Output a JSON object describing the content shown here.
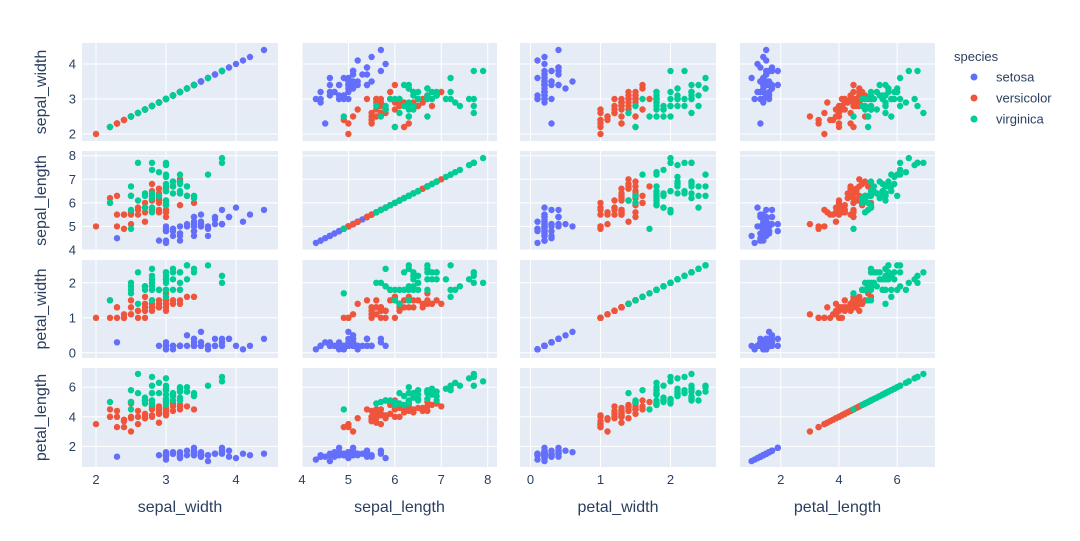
{
  "chart_data": {
    "type": "scatter",
    "subtype": "scatter-matrix",
    "dimensions": [
      "sepal_width",
      "sepal_length",
      "petal_width",
      "petal_length"
    ],
    "axis_labels": [
      "sepal_width",
      "sepal_length",
      "petal_width",
      "petal_length"
    ],
    "axes": {
      "sepal_width": {
        "range": [
          1.8,
          4.6
        ],
        "ticks": [
          2,
          3,
          4
        ]
      },
      "sepal_length": {
        "range": [
          4.0,
          8.2
        ],
        "ticks": [
          4,
          5,
          6,
          7,
          8
        ]
      },
      "petal_width": {
        "range": [
          -0.15,
          2.65
        ],
        "ticks": [
          0,
          1,
          2
        ]
      },
      "petal_length": {
        "range": [
          0.6,
          7.3
        ],
        "ticks": [
          2,
          4,
          6
        ]
      }
    },
    "legend": {
      "title": "species",
      "position": "right"
    },
    "series": [
      {
        "name": "setosa",
        "color": "#636efa",
        "points": [
          [
            3.5,
            5.1,
            0.2,
            1.4
          ],
          [
            3.0,
            4.9,
            0.2,
            1.4
          ],
          [
            3.2,
            4.7,
            0.2,
            1.3
          ],
          [
            3.1,
            4.6,
            0.2,
            1.5
          ],
          [
            3.6,
            5.0,
            0.2,
            1.4
          ],
          [
            3.9,
            5.4,
            0.4,
            1.7
          ],
          [
            3.4,
            4.6,
            0.3,
            1.4
          ],
          [
            3.4,
            5.0,
            0.2,
            1.5
          ],
          [
            2.9,
            4.4,
            0.2,
            1.4
          ],
          [
            3.1,
            4.9,
            0.1,
            1.5
          ],
          [
            3.7,
            5.4,
            0.2,
            1.5
          ],
          [
            3.4,
            4.8,
            0.2,
            1.6
          ],
          [
            3.0,
            4.8,
            0.1,
            1.4
          ],
          [
            3.0,
            4.3,
            0.1,
            1.1
          ],
          [
            4.0,
            5.8,
            0.2,
            1.2
          ],
          [
            4.4,
            5.7,
            0.4,
            1.5
          ],
          [
            3.9,
            5.4,
            0.4,
            1.3
          ],
          [
            3.5,
            5.1,
            0.3,
            1.4
          ],
          [
            3.8,
            5.7,
            0.3,
            1.7
          ],
          [
            3.8,
            5.1,
            0.3,
            1.5
          ],
          [
            3.4,
            5.4,
            0.2,
            1.7
          ],
          [
            3.7,
            5.1,
            0.4,
            1.5
          ],
          [
            3.6,
            4.6,
            0.2,
            1.0
          ],
          [
            3.3,
            5.1,
            0.5,
            1.7
          ],
          [
            3.4,
            4.8,
            0.2,
            1.9
          ],
          [
            3.0,
            5.0,
            0.2,
            1.6
          ],
          [
            3.4,
            5.0,
            0.4,
            1.6
          ],
          [
            3.5,
            5.2,
            0.2,
            1.5
          ],
          [
            3.4,
            5.2,
            0.2,
            1.4
          ],
          [
            3.2,
            4.7,
            0.2,
            1.6
          ],
          [
            3.1,
            4.8,
            0.2,
            1.6
          ],
          [
            3.4,
            5.4,
            0.4,
            1.5
          ],
          [
            4.1,
            5.2,
            0.1,
            1.5
          ],
          [
            4.2,
            5.5,
            0.2,
            1.4
          ],
          [
            3.1,
            4.9,
            0.2,
            1.5
          ],
          [
            3.2,
            5.0,
            0.2,
            1.2
          ],
          [
            3.5,
            5.5,
            0.2,
            1.3
          ],
          [
            3.6,
            4.9,
            0.1,
            1.4
          ],
          [
            3.0,
            4.4,
            0.2,
            1.3
          ],
          [
            3.4,
            5.1,
            0.2,
            1.5
          ],
          [
            3.5,
            5.0,
            0.3,
            1.3
          ],
          [
            2.3,
            4.5,
            0.3,
            1.3
          ],
          [
            3.2,
            4.4,
            0.2,
            1.3
          ],
          [
            3.5,
            5.0,
            0.6,
            1.6
          ],
          [
            3.8,
            5.1,
            0.4,
            1.9
          ],
          [
            3.0,
            4.8,
            0.3,
            1.4
          ],
          [
            3.8,
            5.1,
            0.2,
            1.6
          ],
          [
            3.2,
            4.6,
            0.2,
            1.4
          ],
          [
            3.7,
            5.3,
            0.2,
            1.5
          ],
          [
            3.3,
            5.0,
            0.2,
            1.4
          ]
        ]
      },
      {
        "name": "versicolor",
        "color": "#ef553b",
        "points": [
          [
            3.2,
            7.0,
            1.4,
            4.7
          ],
          [
            3.2,
            6.4,
            1.5,
            4.5
          ],
          [
            3.1,
            6.9,
            1.5,
            4.9
          ],
          [
            2.3,
            5.5,
            1.3,
            4.0
          ],
          [
            2.8,
            6.5,
            1.5,
            4.6
          ],
          [
            2.8,
            5.7,
            1.3,
            4.5
          ],
          [
            3.3,
            6.3,
            1.6,
            4.7
          ],
          [
            2.4,
            4.9,
            1.0,
            3.3
          ],
          [
            2.9,
            6.6,
            1.3,
            4.6
          ],
          [
            2.7,
            5.2,
            1.4,
            3.9
          ],
          [
            2.0,
            5.0,
            1.0,
            3.5
          ],
          [
            3.0,
            5.9,
            1.5,
            4.2
          ],
          [
            2.2,
            6.0,
            1.0,
            4.0
          ],
          [
            2.9,
            6.1,
            1.4,
            4.7
          ],
          [
            2.9,
            5.6,
            1.3,
            3.6
          ],
          [
            3.1,
            6.7,
            1.4,
            4.4
          ],
          [
            3.0,
            5.6,
            1.5,
            4.5
          ],
          [
            2.7,
            5.8,
            1.0,
            4.1
          ],
          [
            2.2,
            6.2,
            1.5,
            4.5
          ],
          [
            2.5,
            5.6,
            1.1,
            3.9
          ],
          [
            3.2,
            5.9,
            1.8,
            4.8
          ],
          [
            2.8,
            6.1,
            1.3,
            4.0
          ],
          [
            2.5,
            6.3,
            1.5,
            4.9
          ],
          [
            2.8,
            6.1,
            1.2,
            4.7
          ],
          [
            2.9,
            6.4,
            1.3,
            4.3
          ],
          [
            3.0,
            6.6,
            1.4,
            4.4
          ],
          [
            2.8,
            6.8,
            1.4,
            4.8
          ],
          [
            3.0,
            6.7,
            1.7,
            5.0
          ],
          [
            2.9,
            6.0,
            1.5,
            4.5
          ],
          [
            2.6,
            5.7,
            1.0,
            3.5
          ],
          [
            2.4,
            5.5,
            1.1,
            3.8
          ],
          [
            2.4,
            5.5,
            1.0,
            3.7
          ],
          [
            2.7,
            5.8,
            1.2,
            3.9
          ],
          [
            2.7,
            6.0,
            1.6,
            5.1
          ],
          [
            3.0,
            5.4,
            1.5,
            4.5
          ],
          [
            3.4,
            6.0,
            1.6,
            4.5
          ],
          [
            3.1,
            6.7,
            1.5,
            4.7
          ],
          [
            2.3,
            6.3,
            1.3,
            4.4
          ],
          [
            3.0,
            5.6,
            1.3,
            4.1
          ],
          [
            2.5,
            5.5,
            1.3,
            4.0
          ],
          [
            2.6,
            5.5,
            1.2,
            4.4
          ],
          [
            3.0,
            6.1,
            1.4,
            4.6
          ],
          [
            2.6,
            5.8,
            1.2,
            4.0
          ],
          [
            2.3,
            5.0,
            1.0,
            3.3
          ],
          [
            2.7,
            5.6,
            1.3,
            4.2
          ],
          [
            3.0,
            5.7,
            1.2,
            4.2
          ],
          [
            2.9,
            5.7,
            1.3,
            4.2
          ],
          [
            2.9,
            6.2,
            1.3,
            4.3
          ],
          [
            2.5,
            5.1,
            1.1,
            3.0
          ],
          [
            2.8,
            5.7,
            1.3,
            4.1
          ]
        ]
      },
      {
        "name": "virginica",
        "color": "#00cc96",
        "points": [
          [
            3.3,
            6.3,
            2.5,
            6.0
          ],
          [
            2.7,
            5.8,
            1.9,
            5.1
          ],
          [
            3.0,
            7.1,
            2.1,
            5.9
          ],
          [
            2.9,
            6.3,
            1.8,
            5.6
          ],
          [
            3.0,
            6.5,
            2.2,
            5.8
          ],
          [
            3.0,
            7.6,
            2.1,
            6.6
          ],
          [
            2.5,
            4.9,
            1.7,
            4.5
          ],
          [
            2.9,
            7.3,
            1.8,
            6.3
          ],
          [
            2.5,
            6.7,
            1.8,
            5.8
          ],
          [
            3.6,
            7.2,
            2.5,
            6.1
          ],
          [
            3.2,
            6.5,
            2.0,
            5.1
          ],
          [
            2.7,
            6.4,
            1.9,
            5.3
          ],
          [
            3.0,
            6.8,
            2.1,
            5.5
          ],
          [
            2.5,
            5.7,
            2.0,
            5.0
          ],
          [
            2.8,
            5.8,
            2.4,
            5.1
          ],
          [
            3.2,
            6.4,
            2.3,
            5.3
          ],
          [
            3.0,
            6.5,
            1.8,
            5.5
          ],
          [
            3.8,
            7.7,
            2.2,
            6.7
          ],
          [
            2.6,
            7.7,
            2.3,
            6.9
          ],
          [
            2.2,
            6.0,
            1.5,
            5.0
          ],
          [
            3.2,
            6.9,
            2.3,
            5.7
          ],
          [
            2.8,
            5.6,
            2.0,
            4.9
          ],
          [
            2.8,
            7.7,
            2.0,
            6.7
          ],
          [
            2.7,
            6.3,
            1.8,
            4.9
          ],
          [
            3.3,
            6.7,
            2.1,
            5.7
          ],
          [
            3.2,
            7.2,
            1.8,
            6.0
          ],
          [
            2.8,
            6.2,
            1.8,
            4.8
          ],
          [
            3.0,
            6.1,
            1.8,
            4.9
          ],
          [
            2.8,
            6.4,
            2.1,
            5.6
          ],
          [
            3.0,
            7.2,
            1.6,
            5.8
          ],
          [
            2.8,
            7.4,
            1.9,
            6.1
          ],
          [
            3.8,
            7.9,
            2.0,
            6.4
          ],
          [
            2.8,
            6.4,
            2.2,
            5.6
          ],
          [
            2.8,
            6.3,
            1.5,
            5.1
          ],
          [
            2.6,
            6.1,
            1.4,
            5.6
          ],
          [
            3.0,
            7.7,
            2.3,
            6.1
          ],
          [
            3.4,
            6.3,
            2.4,
            5.6
          ],
          [
            3.1,
            6.4,
            1.8,
            5.5
          ],
          [
            3.0,
            6.0,
            1.8,
            4.8
          ],
          [
            3.1,
            6.9,
            2.1,
            5.4
          ],
          [
            3.1,
            6.7,
            2.4,
            5.6
          ],
          [
            3.1,
            6.9,
            2.3,
            5.1
          ],
          [
            2.7,
            5.8,
            1.9,
            5.1
          ],
          [
            3.2,
            6.8,
            2.3,
            5.9
          ],
          [
            3.3,
            6.7,
            2.5,
            5.7
          ],
          [
            3.0,
            6.7,
            2.3,
            5.2
          ],
          [
            2.5,
            6.3,
            1.9,
            5.0
          ],
          [
            3.0,
            6.5,
            2.0,
            5.2
          ],
          [
            3.4,
            6.2,
            2.3,
            5.4
          ],
          [
            3.0,
            5.9,
            1.8,
            5.1
          ]
        ]
      }
    ]
  }
}
